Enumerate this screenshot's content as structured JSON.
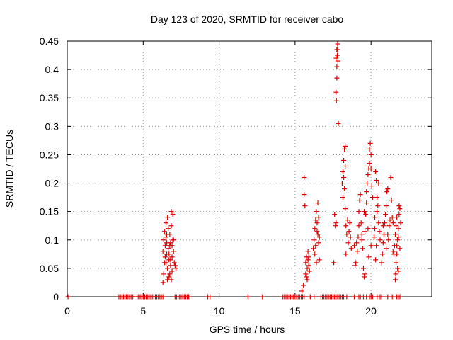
{
  "chart_data": {
    "type": "scatter",
    "title": "Day 123 of 2020, SRMTID for receiver cabo",
    "xlabel": "GPS time / hours",
    "ylabel": "SRMTID / TECUs",
    "xlim": [
      0,
      24
    ],
    "ylim": [
      0,
      0.45
    ],
    "xticks": [
      0,
      5,
      10,
      15,
      20
    ],
    "xtick_labels": [
      "0",
      "5",
      "10",
      "15",
      "20"
    ],
    "yticks": [
      0,
      0.05,
      0.1,
      0.15,
      0.2,
      0.25,
      0.3,
      0.35,
      0.4,
      0.45
    ],
    "ytick_labels": [
      "0",
      "0.05",
      "0.1",
      "0.15",
      "0.2",
      "0.25",
      "0.3",
      "0.35",
      "0.4",
      "0.45"
    ],
    "grid": true,
    "marker": "+",
    "color": "#dd0000",
    "series": [
      {
        "name": "SRMTID",
        "points": [
          [
            0.05,
            0
          ],
          [
            3.4,
            0
          ],
          [
            3.5,
            0
          ],
          [
            3.6,
            0
          ],
          [
            3.7,
            0
          ],
          [
            3.8,
            0
          ],
          [
            3.9,
            0
          ],
          [
            4.0,
            0
          ],
          [
            4.1,
            0
          ],
          [
            4.2,
            0
          ],
          [
            4.3,
            0
          ],
          [
            4.4,
            0
          ],
          [
            4.6,
            0
          ],
          [
            4.7,
            0
          ],
          [
            4.8,
            0
          ],
          [
            4.9,
            0
          ],
          [
            5.0,
            0
          ],
          [
            5.1,
            0
          ],
          [
            5.2,
            0
          ],
          [
            5.3,
            0
          ],
          [
            5.4,
            0
          ],
          [
            5.5,
            0
          ],
          [
            5.6,
            0
          ],
          [
            5.7,
            0
          ],
          [
            5.8,
            0
          ],
          [
            5.9,
            0
          ],
          [
            6.0,
            0
          ],
          [
            6.1,
            0
          ],
          [
            6.2,
            0
          ],
          [
            6.3,
            0
          ],
          [
            7.1,
            0
          ],
          [
            7.2,
            0
          ],
          [
            7.3,
            0
          ],
          [
            7.4,
            0
          ],
          [
            7.5,
            0
          ],
          [
            7.6,
            0
          ],
          [
            7.7,
            0
          ],
          [
            7.8,
            0
          ],
          [
            7.9,
            0
          ],
          [
            8.0,
            0
          ],
          [
            9.25,
            0
          ],
          [
            9.4,
            0
          ],
          [
            11.9,
            0
          ],
          [
            12.85,
            0
          ],
          [
            14.2,
            0
          ],
          [
            14.3,
            0
          ],
          [
            14.4,
            0
          ],
          [
            14.5,
            0
          ],
          [
            14.6,
            0
          ],
          [
            14.7,
            0
          ],
          [
            14.8,
            0
          ],
          [
            14.9,
            0
          ],
          [
            15.0,
            0
          ],
          [
            15.1,
            0
          ],
          [
            15.2,
            0
          ],
          [
            15.3,
            0
          ],
          [
            15.4,
            0
          ],
          [
            15.5,
            0
          ],
          [
            15.6,
            0
          ],
          [
            16.0,
            0
          ],
          [
            16.25,
            0
          ],
          [
            16.7,
            0
          ],
          [
            16.8,
            0
          ],
          [
            16.9,
            0
          ],
          [
            17.0,
            0
          ],
          [
            17.1,
            0
          ],
          [
            17.2,
            0
          ],
          [
            17.3,
            0
          ],
          [
            17.4,
            0
          ],
          [
            17.5,
            0
          ],
          [
            17.6,
            0
          ],
          [
            17.7,
            0
          ],
          [
            17.8,
            0
          ],
          [
            17.9,
            0
          ],
          [
            18.0,
            0
          ],
          [
            18.1,
            0
          ],
          [
            18.2,
            0
          ],
          [
            18.4,
            0
          ],
          [
            18.9,
            0
          ],
          [
            19.2,
            0
          ],
          [
            19.3,
            0
          ],
          [
            19.5,
            0
          ],
          [
            19.7,
            0
          ],
          [
            19.9,
            0
          ],
          [
            20.0,
            0
          ],
          [
            20.1,
            0
          ],
          [
            20.4,
            0
          ],
          [
            20.6,
            0
          ],
          [
            20.7,
            0
          ],
          [
            21.1,
            0
          ],
          [
            21.4,
            0
          ],
          [
            21.7,
            0
          ],
          [
            21.8,
            0
          ],
          [
            21.9,
            0
          ],
          [
            6.3,
            0.025
          ],
          [
            6.35,
            0.04
          ],
          [
            6.4,
            0.06
          ],
          [
            6.45,
            0.09
          ],
          [
            6.5,
            0.105
          ],
          [
            6.5,
            0.13
          ],
          [
            6.55,
            0.075
          ],
          [
            6.6,
            0.05
          ],
          [
            6.6,
            0.14
          ],
          [
            6.65,
            0.085
          ],
          [
            6.7,
            0.035
          ],
          [
            6.7,
            0.065
          ],
          [
            6.75,
            0.11
          ],
          [
            6.8,
            0.095
          ],
          [
            6.8,
            0.055
          ],
          [
            6.85,
            0.125
          ],
          [
            6.9,
            0.07
          ],
          [
            6.9,
            0.045
          ],
          [
            6.95,
            0.1
          ],
          [
            7.0,
            0.08
          ],
          [
            6.95,
            0.145
          ],
          [
            6.85,
            0.15
          ],
          [
            7.05,
            0.06
          ],
          [
            7.1,
            0.055
          ],
          [
            6.4,
            0.115
          ],
          [
            6.55,
            0.095
          ],
          [
            6.6,
            0.03
          ],
          [
            6.7,
            0.075
          ],
          [
            6.75,
            0.09
          ],
          [
            6.8,
            0.065
          ],
          [
            6.45,
            0.07
          ],
          [
            6.65,
            0.12
          ],
          [
            7.0,
            0.1
          ],
          [
            6.9,
            0.09
          ],
          [
            6.5,
            0.06
          ],
          [
            6.3,
            0.08
          ],
          [
            6.75,
            0.04
          ],
          [
            6.85,
            0.03
          ],
          [
            7.15,
            0.05
          ],
          [
            6.55,
            0.11
          ],
          [
            6.35,
            0.1
          ],
          [
            15.45,
            0.01
          ],
          [
            15.55,
            0.02
          ],
          [
            15.6,
            0.21
          ],
          [
            15.6,
            0.18
          ],
          [
            15.65,
            0.16
          ],
          [
            15.7,
            0.06
          ],
          [
            15.7,
            0.04
          ],
          [
            15.75,
            0.07
          ],
          [
            15.8,
            0.05
          ],
          [
            15.8,
            0.03
          ],
          [
            15.85,
            0.065
          ],
          [
            15.9,
            0.07
          ],
          [
            15.9,
            0.055
          ],
          [
            15.95,
            0.045
          ],
          [
            15.75,
            0.035
          ],
          [
            15.85,
            0.08
          ],
          [
            16.2,
            0.085
          ],
          [
            16.25,
            0.1
          ],
          [
            16.3,
            0.12
          ],
          [
            16.35,
            0.135
          ],
          [
            16.4,
            0.15
          ],
          [
            16.45,
            0.13
          ],
          [
            16.5,
            0.165
          ],
          [
            16.5,
            0.11
          ],
          [
            16.55,
            0.095
          ],
          [
            16.6,
            0.105
          ],
          [
            16.3,
            0.075
          ],
          [
            16.4,
            0.06
          ],
          [
            16.45,
            0.115
          ],
          [
            16.55,
            0.14
          ],
          [
            16.35,
            0.09
          ],
          [
            16.6,
            0.065
          ],
          [
            17.55,
            0.06
          ],
          [
            17.6,
            0.145
          ],
          [
            17.65,
            0.125
          ],
          [
            17.7,
            0.13
          ],
          [
            17.7,
            0.36
          ],
          [
            17.72,
            0.345
          ],
          [
            17.75,
            0.385
          ],
          [
            17.75,
            0.405
          ],
          [
            17.78,
            0.425
          ],
          [
            17.8,
            0.435
          ],
          [
            17.8,
            0.445
          ],
          [
            17.82,
            0.415
          ],
          [
            17.85,
            0.305
          ],
          [
            17.7,
            0.42
          ],
          [
            17.75,
            0.435
          ],
          [
            18.1,
            0.2
          ],
          [
            18.15,
            0.22
          ],
          [
            18.15,
            0.175
          ],
          [
            18.2,
            0.24
          ],
          [
            18.25,
            0.26
          ],
          [
            18.3,
            0.265
          ],
          [
            18.25,
            0.19
          ],
          [
            18.3,
            0.155
          ],
          [
            18.35,
            0.125
          ],
          [
            18.35,
            0.075
          ],
          [
            18.4,
            0.11
          ],
          [
            18.45,
            0.135
          ],
          [
            18.5,
            0.095
          ],
          [
            18.55,
            0.115
          ],
          [
            18.6,
            0.13
          ],
          [
            18.65,
            0.105
          ],
          [
            18.7,
            0.085
          ],
          [
            18.3,
            0.23
          ],
          [
            18.2,
            0.21
          ],
          [
            18.9,
            0.09
          ],
          [
            18.95,
            0.055
          ],
          [
            19.0,
            0.06
          ],
          [
            19.05,
            0.095
          ],
          [
            19.1,
            0.08
          ],
          [
            19.15,
            0.105
          ],
          [
            19.2,
            0.125
          ],
          [
            19.2,
            0.15
          ],
          [
            19.25,
            0.17
          ],
          [
            19.3,
            0.18
          ],
          [
            19.35,
            0.13
          ],
          [
            19.4,
            0.1
          ],
          [
            19.45,
            0.085
          ],
          [
            19.5,
            0.05
          ],
          [
            19.55,
            0.035
          ],
          [
            19.6,
            0.04
          ],
          [
            19.6,
            0.115
          ],
          [
            19.65,
            0.145
          ],
          [
            19.7,
            0.165
          ],
          [
            19.7,
            0.185
          ],
          [
            19.75,
            0.2
          ],
          [
            19.8,
            0.215
          ],
          [
            19.85,
            0.225
          ],
          [
            19.9,
            0.235
          ],
          [
            19.9,
            0.26
          ],
          [
            19.95,
            0.27
          ],
          [
            20.0,
            0.25
          ],
          [
            20.0,
            0.225
          ],
          [
            20.05,
            0.195
          ],
          [
            20.1,
            0.175
          ],
          [
            19.8,
            0.12
          ],
          [
            19.85,
            0.07
          ],
          [
            20.0,
            0.09
          ],
          [
            19.4,
            0.11
          ],
          [
            19.55,
            0.15
          ],
          [
            20.2,
            0.105
          ],
          [
            20.25,
            0.14
          ],
          [
            20.3,
            0.22
          ],
          [
            20.35,
            0.205
          ],
          [
            20.4,
            0.175
          ],
          [
            20.45,
            0.16
          ],
          [
            20.5,
            0.13
          ],
          [
            20.55,
            0.115
          ],
          [
            20.6,
            0.1
          ],
          [
            20.3,
            0.065
          ],
          [
            20.35,
            0.09
          ],
          [
            20.4,
            0.15
          ],
          [
            20.5,
            0.2
          ],
          [
            20.25,
            0.12
          ],
          [
            20.7,
            0.06
          ],
          [
            20.75,
            0.075
          ],
          [
            20.8,
            0.095
          ],
          [
            20.85,
            0.11
          ],
          [
            20.9,
            0.13
          ],
          [
            20.95,
            0.145
          ],
          [
            21.0,
            0.16
          ],
          [
            21.05,
            0.185
          ],
          [
            21.1,
            0.19
          ],
          [
            21.1,
            0.11
          ],
          [
            21.15,
            0.1
          ],
          [
            21.2,
            0.125
          ],
          [
            21.25,
            0.135
          ],
          [
            21.3,
            0.21
          ],
          [
            21.35,
            0.17
          ],
          [
            21.4,
            0.14
          ],
          [
            21.45,
            0.13
          ],
          [
            21.45,
            0.08
          ],
          [
            21.5,
            0.075
          ],
          [
            21.55,
            0.09
          ],
          [
            20.8,
            0.125
          ],
          [
            21.0,
            0.085
          ],
          [
            21.6,
            0.03
          ],
          [
            21.62,
            0.04
          ],
          [
            21.65,
            0.06
          ],
          [
            21.7,
            0.075
          ],
          [
            21.7,
            0.09
          ],
          [
            21.75,
            0.1
          ],
          [
            21.8,
            0.105
          ],
          [
            21.8,
            0.12
          ],
          [
            21.85,
            0.145
          ],
          [
            21.85,
            0.16
          ],
          [
            21.9,
            0.155
          ],
          [
            21.95,
            0.13
          ],
          [
            21.6,
            0.11
          ],
          [
            21.65,
            0.125
          ],
          [
            21.7,
            0.14
          ],
          [
            21.75,
            0.05
          ],
          [
            21.8,
            0.045
          ],
          [
            21.9,
            0.085
          ]
        ]
      }
    ]
  }
}
